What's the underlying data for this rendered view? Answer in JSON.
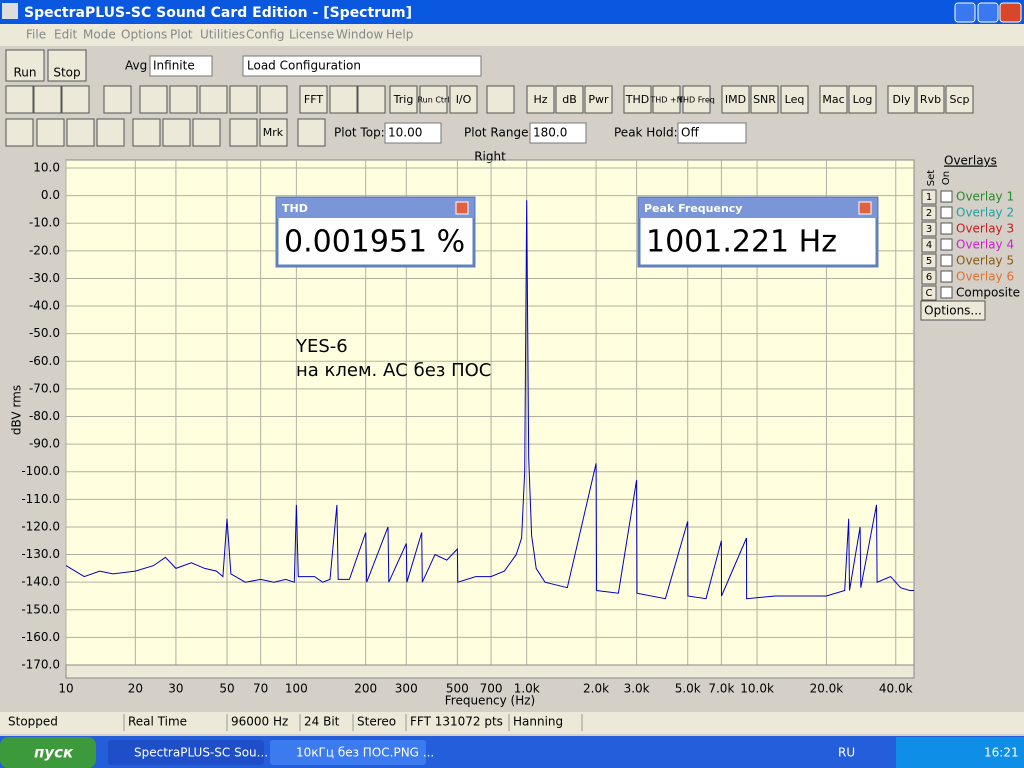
{
  "window": {
    "title": "SpectraPLUS-SC Sound Card Edition - [Spectrum]",
    "menu": [
      "File",
      "Edit",
      "Mode",
      "Options",
      "Plot",
      "Utilities",
      "Config",
      "License",
      "Window",
      "Help"
    ]
  },
  "toolbar1": {
    "run": "Run",
    "stop": "Stop",
    "avg_label": "Avg",
    "avg_value": "Infinite",
    "config": "Load Configuration"
  },
  "toolbar2": [
    "FFT",
    "Trig",
    "Run Ctrl",
    "I/O",
    "Hz",
    "dB",
    "Pwr",
    "THD",
    "THD +N",
    "THD Freq",
    "IMD",
    "SNR",
    "Leq",
    "Mac",
    "Log",
    "Dly",
    "Rvb",
    "Scp"
  ],
  "toolbar3": {
    "mrk": "Mrk",
    "plot_top_label": "Plot Top:",
    "plot_top": "10.00",
    "plot_range_label": "Plot Range:",
    "plot_range": "180.0",
    "peak_hold_label": "Peak Hold:",
    "peak_hold": "Off"
  },
  "chart_data": {
    "type": "line",
    "title": "Right",
    "x_label": "Frequency (Hz)",
    "y_label": "dBV rms",
    "annotations": [
      "YES-6",
      "на клем. АС без ПОС"
    ],
    "x_scale": "log",
    "grid": true,
    "color": "#0000c8",
    "x": [
      10,
      12,
      14,
      16,
      20,
      24,
      27,
      30,
      35,
      40,
      45,
      48,
      50,
      52,
      60,
      70,
      80,
      90,
      98,
      100,
      102,
      120,
      130,
      140,
      150,
      152,
      170,
      200,
      202,
      250,
      252,
      300,
      302,
      350,
      352,
      400,
      450,
      500,
      502,
      600,
      700,
      800,
      900,
      950,
      980,
      1000,
      1020,
      1050,
      1100,
      1200,
      1500,
      2000,
      2010,
      2500,
      3000,
      3010,
      4000,
      5000,
      5010,
      6000,
      7000,
      7010,
      9000,
      9010,
      12000,
      15000,
      20000,
      24000,
      25000,
      25200,
      28000,
      28200,
      33000,
      33200,
      38000,
      42000,
      46000,
      48000
    ],
    "values": [
      -134,
      -138,
      -136,
      -137,
      -136,
      -134,
      -131,
      -135,
      -133,
      -135,
      -136,
      -138,
      -117,
      -137,
      -140,
      -139,
      -140,
      -139,
      -140,
      -112,
      -138,
      -138,
      -140,
      -139,
      -112,
      -139,
      -139,
      -122,
      -140,
      -120,
      -140,
      -126,
      -140,
      -122,
      -140,
      -130,
      -132,
      -128,
      -140,
      -138,
      -138,
      -136,
      -130,
      -124,
      -100,
      -1.7,
      -95,
      -123,
      -135,
      -140,
      -142,
      -97,
      -143,
      -144,
      -103,
      -144,
      -146,
      -118,
      -145,
      -146,
      -125,
      -145,
      -124,
      -146,
      -145,
      -145,
      -145,
      -143,
      -117,
      -143,
      -120,
      -142,
      -112,
      -140,
      -138,
      -142,
      -143,
      -143
    ],
    "xlim": [
      10,
      48000
    ],
    "ylim": [
      -170,
      10
    ],
    "xticks": [
      10,
      20,
      30,
      50,
      70,
      100,
      200,
      300,
      500,
      700,
      {
        "value": 1000,
        "label": "1.0k"
      },
      {
        "value": 2000,
        "label": "2.0k"
      },
      {
        "value": 3000,
        "label": "3.0k"
      },
      {
        "value": 5000,
        "label": "5.0k"
      },
      {
        "value": 7000,
        "label": "7.0k"
      },
      {
        "value": 10000,
        "label": "10.0k"
      },
      {
        "value": 20000,
        "label": "20.0k"
      },
      {
        "value": 40000,
        "label": "40.0k"
      }
    ],
    "yticks": [
      {
        "value": 10,
        "label": "10.0"
      },
      {
        "value": 0,
        "label": "0.0"
      },
      {
        "value": -10,
        "label": "-10.0"
      },
      {
        "value": -20,
        "label": "-20.0"
      },
      {
        "value": -30,
        "label": "-30.0"
      },
      {
        "value": -40,
        "label": "-40.0"
      },
      {
        "value": -50,
        "label": "-50.0"
      },
      {
        "value": -60,
        "label": "-60.0"
      },
      {
        "value": -70,
        "label": "-70.0"
      },
      {
        "value": -80,
        "label": "-80.0"
      },
      {
        "value": -90,
        "label": "-90.0"
      },
      {
        "value": -100,
        "label": "-100.0"
      },
      {
        "value": -110,
        "label": "-110.0"
      },
      {
        "value": -120,
        "label": "-120.0"
      },
      {
        "value": -130,
        "label": "-130.0"
      },
      {
        "value": -140,
        "label": "-140.0"
      },
      {
        "value": -150,
        "label": "-150.0"
      },
      {
        "value": -160,
        "label": "-160.0"
      },
      {
        "value": -170,
        "label": "-170.0"
      }
    ]
  },
  "thd_box": {
    "title": "THD",
    "value": "0.001951 %"
  },
  "peak_box": {
    "title": "Peak Frequency",
    "value": "1001.221 Hz"
  },
  "overlays": {
    "title": "Overlays",
    "set": "Set",
    "on": "On",
    "items": [
      {
        "num": "1",
        "name": "Overlay 1",
        "color": "#2a8a2a"
      },
      {
        "num": "2",
        "name": "Overlay 2",
        "color": "#20a0a0"
      },
      {
        "num": "3",
        "name": "Overlay 3",
        "color": "#c02020"
      },
      {
        "num": "4",
        "name": "Overlay 4",
        "color": "#d020d0"
      },
      {
        "num": "5",
        "name": "Overlay 5",
        "color": "#8a5a10"
      },
      {
        "num": "6",
        "name": "Overlay 6",
        "color": "#e07030"
      },
      {
        "num": "C",
        "name": "Composite",
        "color": "#000000"
      }
    ],
    "options": "Options..."
  },
  "status": [
    "Stopped",
    "Real Time",
    "96000 Hz",
    "24 Bit",
    "Stereo",
    "FFT 131072 pts",
    "Hanning"
  ],
  "taskbar": {
    "start": "пуск",
    "tasks": [
      "SpectraPLUS-SC Sou...",
      "10кГц без ПОС.PNG ..."
    ],
    "lang": "RU",
    "time": "16:21"
  }
}
